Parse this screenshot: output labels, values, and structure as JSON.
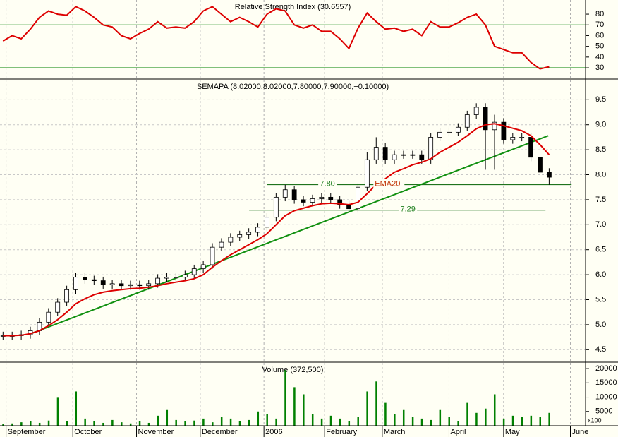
{
  "chart_data": [
    {
      "type": "line",
      "title": "Relative Strength Index (30.6557)",
      "color": "#dd0000",
      "line_color": "#008000",
      "x": [
        1,
        4,
        7,
        10,
        13,
        16,
        19,
        22,
        25,
        28,
        31,
        34,
        37,
        40,
        43,
        46,
        49,
        52,
        55,
        58,
        61,
        64,
        67,
        70,
        73,
        76,
        79,
        82,
        85,
        88,
        91,
        94,
        97,
        100,
        103,
        106,
        109,
        112,
        115,
        118,
        121,
        124,
        127,
        130,
        133,
        136,
        139,
        142,
        145,
        148,
        151,
        154,
        157,
        160,
        163,
        166,
        169,
        172,
        175,
        178,
        181
      ],
      "values": [
        55,
        60,
        57,
        66,
        77,
        83,
        80,
        79,
        87,
        83,
        77,
        70,
        68,
        60,
        57,
        62,
        66,
        73,
        67,
        68,
        67,
        73,
        83,
        87,
        80,
        73,
        77,
        73,
        68,
        80,
        85,
        83,
        70,
        67,
        70,
        64,
        64,
        57,
        48,
        67,
        81,
        73,
        66,
        67,
        64,
        66,
        60,
        73,
        68,
        68,
        72,
        77,
        80,
        70,
        50,
        47,
        44,
        44,
        35,
        29,
        31
      ],
      "ylim": [
        19.5,
        93.2
      ],
      "yticks": [
        30,
        40,
        50,
        60,
        70,
        80
      ],
      "hlines": [
        70,
        30
      ]
    },
    {
      "type": "candlestick",
      "title": "SEMAPA (8.02000,8.02000,7.80000,7.90000,+0.10000)",
      "x": [
        1,
        4,
        7,
        10,
        13,
        16,
        19,
        22,
        25,
        28,
        31,
        34,
        37,
        40,
        43,
        46,
        49,
        52,
        55,
        58,
        61,
        64,
        67,
        70,
        73,
        76,
        79,
        82,
        85,
        88,
        91,
        94,
        97,
        100,
        103,
        106,
        109,
        112,
        115,
        118,
        121,
        124,
        127,
        130,
        133,
        136,
        139,
        142,
        145,
        148,
        151,
        154,
        157,
        160,
        163,
        166,
        169,
        172,
        175,
        178,
        181
      ],
      "open": [
        4.78,
        4.78,
        4.78,
        4.8,
        4.88,
        5.05,
        5.25,
        5.45,
        5.7,
        5.95,
        5.9,
        5.88,
        5.8,
        5.82,
        5.78,
        5.8,
        5.78,
        5.82,
        5.93,
        5.95,
        5.95,
        6.0,
        6.12,
        6.2,
        6.55,
        6.65,
        6.75,
        6.8,
        6.85,
        6.95,
        7.15,
        7.55,
        7.7,
        7.5,
        7.45,
        7.52,
        7.55,
        7.5,
        7.4,
        7.32,
        7.75,
        8.3,
        8.55,
        8.3,
        8.4,
        8.4,
        8.4,
        8.3,
        8.75,
        8.85,
        8.85,
        8.95,
        9.2,
        9.35,
        8.9,
        9.05,
        8.7,
        8.75,
        8.75,
        8.35,
        8.05
      ],
      "high": [
        4.86,
        4.86,
        4.88,
        4.96,
        5.13,
        5.33,
        5.53,
        5.78,
        6.03,
        6.03,
        5.98,
        5.96,
        5.9,
        5.9,
        5.88,
        5.88,
        5.9,
        6.01,
        6.03,
        6.03,
        6.08,
        6.2,
        6.28,
        6.63,
        6.73,
        6.83,
        6.88,
        6.93,
        7.03,
        7.23,
        7.63,
        7.8,
        7.78,
        7.58,
        7.6,
        7.63,
        7.63,
        7.58,
        7.48,
        7.83,
        8.45,
        8.75,
        8.63,
        8.48,
        8.48,
        8.48,
        8.48,
        8.83,
        8.93,
        8.93,
        9.03,
        9.28,
        9.43,
        9.43,
        9.2,
        9.13,
        8.83,
        8.83,
        8.83,
        8.43,
        8.13
      ],
      "low": [
        4.7,
        4.7,
        4.7,
        4.72,
        4.8,
        4.97,
        5.17,
        5.37,
        5.62,
        5.82,
        5.8,
        5.72,
        5.72,
        5.7,
        5.7,
        5.7,
        5.7,
        5.74,
        5.85,
        5.87,
        5.87,
        5.92,
        6.04,
        6.12,
        6.47,
        6.57,
        6.67,
        6.72,
        6.77,
        6.87,
        7.07,
        7.47,
        7.42,
        7.37,
        7.37,
        7.44,
        7.42,
        7.32,
        7.24,
        7.24,
        7.67,
        8.22,
        8.22,
        8.22,
        8.32,
        8.32,
        8.22,
        8.22,
        8.67,
        8.77,
        8.77,
        8.87,
        9.12,
        8.1,
        8.1,
        8.62,
        8.62,
        8.67,
        8.27,
        7.97,
        7.8
      ],
      "close": [
        4.78,
        4.78,
        4.8,
        4.88,
        5.05,
        5.25,
        5.45,
        5.7,
        5.95,
        5.9,
        5.88,
        5.8,
        5.82,
        5.78,
        5.8,
        5.78,
        5.82,
        5.93,
        5.95,
        5.95,
        6.0,
        6.12,
        6.2,
        6.55,
        6.65,
        6.75,
        6.8,
        6.85,
        6.95,
        7.15,
        7.55,
        7.7,
        7.5,
        7.45,
        7.52,
        7.55,
        7.5,
        7.4,
        7.32,
        7.75,
        8.3,
        8.55,
        8.3,
        8.4,
        8.4,
        8.4,
        8.3,
        8.75,
        8.85,
        8.85,
        8.95,
        9.2,
        9.35,
        8.9,
        9.05,
        8.7,
        8.75,
        8.75,
        8.35,
        8.05,
        7.95
      ],
      "series": [
        {
          "name": "EMA20",
          "color": "#dd0000",
          "values": [
            4.78,
            4.78,
            4.79,
            4.82,
            4.88,
            4.98,
            5.1,
            5.25,
            5.42,
            5.52,
            5.6,
            5.65,
            5.68,
            5.7,
            5.72,
            5.73,
            5.75,
            5.78,
            5.82,
            5.85,
            5.88,
            5.92,
            6.0,
            6.15,
            6.28,
            6.4,
            6.5,
            6.6,
            6.7,
            6.82,
            7.0,
            7.18,
            7.28,
            7.33,
            7.38,
            7.42,
            7.43,
            7.42,
            7.4,
            7.45,
            7.62,
            7.8,
            7.92,
            8.05,
            8.12,
            8.2,
            8.25,
            8.32,
            8.45,
            8.55,
            8.65,
            8.78,
            8.92,
            9.0,
            9.02,
            8.98,
            8.93,
            8.88,
            8.78,
            8.6,
            8.4
          ]
        }
      ],
      "trendline": {
        "color": "#109010",
        "x": [
          9.3,
          180.7
        ],
        "values": [
          4.8,
          8.78
        ]
      },
      "levels": [
        {
          "value": 7.8,
          "label": "7.80",
          "x": [
            87.9,
            188.4
          ]
        },
        {
          "value": 7.29,
          "label": "7.29",
          "x": [
            82.1,
            179.8
          ]
        }
      ],
      "level_color": "#006000",
      "ylim": [
        4.25,
        9.9
      ],
      "yticks": [
        4.5,
        {
          "value": 5,
          "label": "5.0"
        },
        5.5,
        {
          "value": 6,
          "label": "6.0"
        },
        6.5,
        {
          "value": 7,
          "label": "7.0"
        },
        7.5,
        {
          "value": 8,
          "label": "8.0"
        },
        8.5,
        {
          "value": 9,
          "label": "9.0"
        },
        9.5
      ]
    },
    {
      "type": "bar",
      "title": "Volume (372,500)",
      "color": "#008000",
      "unit_note": "x100",
      "x": [
        1,
        4,
        7,
        10,
        13,
        16,
        19,
        22,
        25,
        28,
        31,
        34,
        37,
        40,
        43,
        46,
        49,
        52,
        55,
        58,
        61,
        64,
        67,
        70,
        73,
        76,
        79,
        82,
        85,
        88,
        91,
        94,
        97,
        100,
        103,
        106,
        109,
        112,
        115,
        118,
        121,
        124,
        127,
        130,
        133,
        136,
        139,
        142,
        145,
        148,
        151,
        154,
        157,
        160,
        163,
        166,
        169,
        172,
        175,
        178,
        181
      ],
      "values": [
        500,
        800,
        1200,
        1500,
        1000,
        1800,
        9800,
        1500,
        12000,
        2500,
        1500,
        1000,
        2000,
        1200,
        800,
        1500,
        1000,
        3500,
        5500,
        2000,
        1500,
        1800,
        2500,
        1200,
        3000,
        2500,
        1500,
        2000,
        5000,
        4000,
        2500,
        19500,
        13500,
        11000,
        4000,
        2500,
        3500,
        2500,
        1500,
        3000,
        12000,
        15500,
        8000,
        4000,
        5500,
        3000,
        2500,
        2000,
        5500,
        3000,
        1500,
        8000,
        4500,
        6000,
        11000,
        2500,
        3500,
        3000,
        3500,
        3000,
        4500
      ],
      "ylim": [
        0,
        22000
      ],
      "yticks": [
        5000,
        10000,
        15000,
        20000
      ],
      "xlim": [
        0,
        193
      ],
      "xticks": [
        {
          "value": 2,
          "label": "September"
        },
        {
          "value": 24,
          "label": "October"
        },
        {
          "value": 45,
          "label": "November"
        },
        {
          "value": 66,
          "label": "December"
        },
        {
          "value": 87,
          "label": "2006"
        },
        {
          "value": 107,
          "label": "February"
        },
        {
          "value": 126,
          "label": "March"
        },
        {
          "value": 148,
          "label": "April"
        },
        {
          "value": 166,
          "label": "May"
        },
        {
          "value": 188,
          "label": "June"
        }
      ]
    }
  ]
}
